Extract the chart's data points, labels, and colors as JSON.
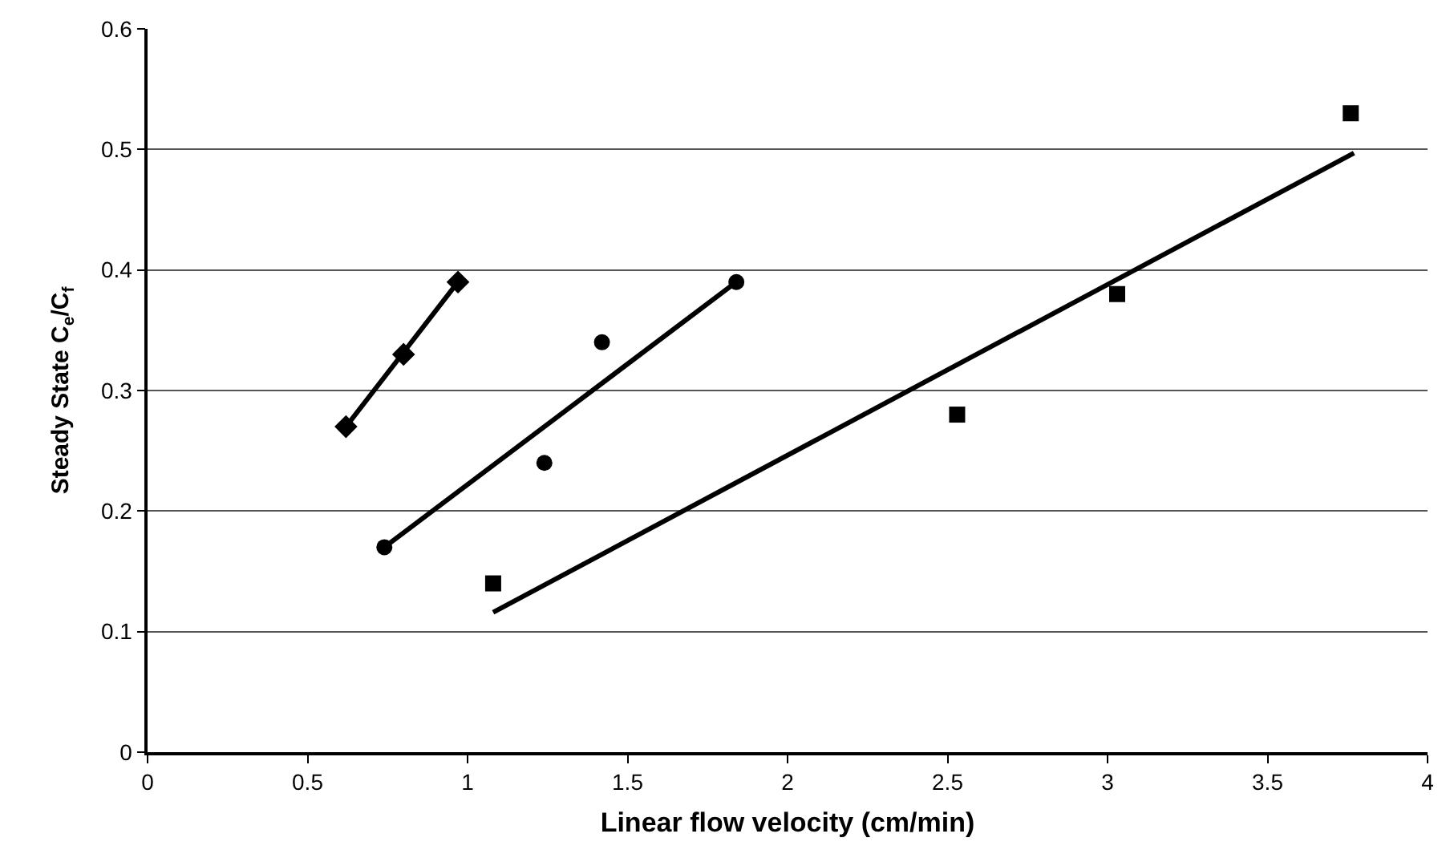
{
  "chart_data": {
    "type": "scatter",
    "xlabel": "Linear flow velocity (cm/min)",
    "ylabel": "Steady State C$_{e}$/C$_{f}$",
    "xlim": [
      0,
      4
    ],
    "xticks": [
      0,
      0.5,
      1,
      1.5,
      2,
      2.5,
      3,
      3.5,
      4
    ],
    "ylim": [
      0,
      0.6
    ],
    "yticks": [
      0,
      0.1,
      0.2,
      0.3,
      0.4,
      0.5,
      0.6
    ],
    "grid": "y",
    "series": [
      {
        "marker": "diamond",
        "color": "#000000",
        "x": [
          0.62,
          0.8,
          0.97
        ],
        "values": [
          0.27,
          0.33,
          0.39
        ]
      },
      {
        "marker": "circle",
        "color": "#000000",
        "x": [
          0.74,
          1.24,
          1.42,
          1.84
        ],
        "values": [
          0.17,
          0.24,
          0.34,
          0.39
        ]
      },
      {
        "marker": "square",
        "color": "#000000",
        "x": [
          1.08,
          2.53,
          3.03,
          3.76
        ],
        "values": [
          0.14,
          0.28,
          0.38,
          0.53
        ]
      },
      {
        "type": "line",
        "marker": "none",
        "line_style": "solid",
        "color": "#000000",
        "x": [
          0.62,
          0.97
        ],
        "values": [
          0.27,
          0.39
        ]
      },
      {
        "type": "line",
        "marker": "none",
        "line_style": "solid",
        "color": "#000000",
        "x": [
          0.74,
          1.84
        ],
        "values": [
          0.17,
          0.39
        ]
      },
      {
        "type": "line",
        "marker": "none",
        "line_style": "solid",
        "color": "#000000",
        "x": [
          1.08,
          3.77
        ],
        "values": [
          0.116,
          0.497
        ]
      }
    ]
  }
}
